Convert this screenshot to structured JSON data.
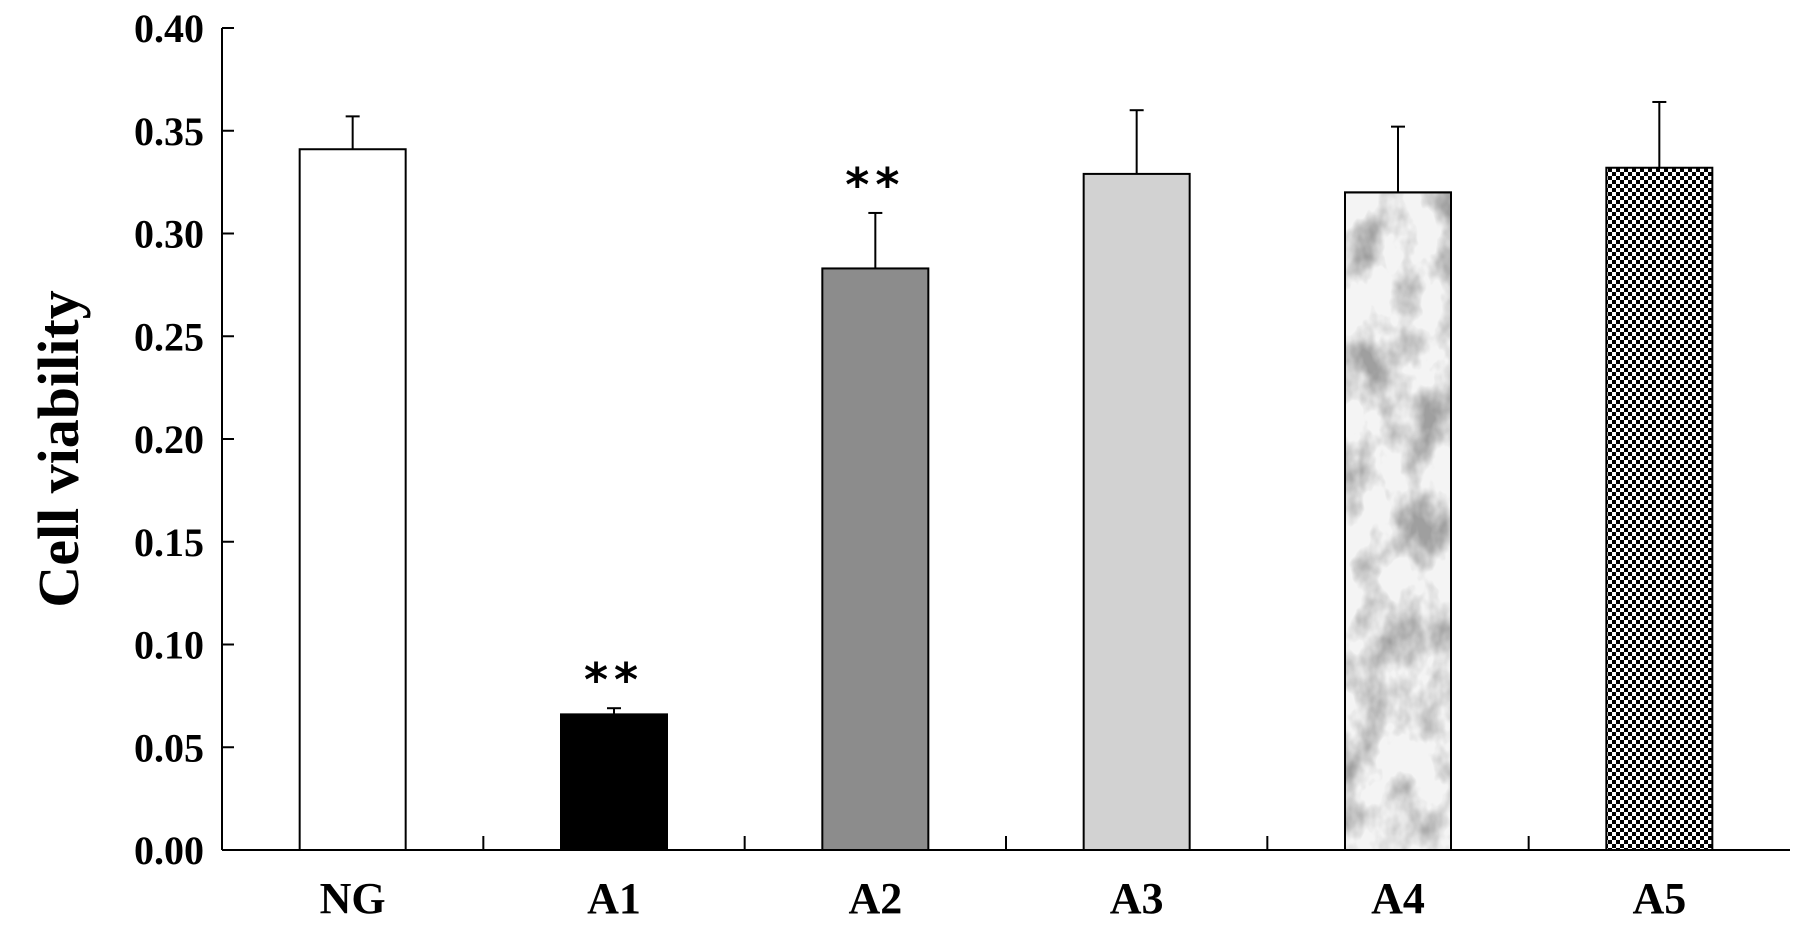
{
  "chart_data": {
    "type": "bar",
    "title": "",
    "xlabel": "",
    "ylabel": "Cell viability",
    "ylim": [
      0,
      0.4
    ],
    "yticks": [
      "0.00",
      "0.05",
      "0.10",
      "0.15",
      "0.20",
      "0.25",
      "0.30",
      "0.35",
      "0.40"
    ],
    "categories": [
      "NG",
      "A1",
      "A2",
      "A3",
      "A4",
      "A5"
    ],
    "values": [
      0.341,
      0.066,
      0.283,
      0.329,
      0.32,
      0.332
    ],
    "errors": [
      0.016,
      0.003,
      0.027,
      0.031,
      0.032,
      0.032
    ],
    "significance": [
      "",
      "**",
      "**",
      "",
      "",
      ""
    ],
    "fills": [
      "white",
      "black",
      "dark-gray",
      "light-gray",
      "marble-texture",
      "checkerboard"
    ],
    "colors": {
      "white": "#ffffff",
      "black": "#000000",
      "dark_gray": "#8c8c8c",
      "light_gray": "#d2d2d2",
      "axis": "#000000"
    },
    "grid": false,
    "legend": "none"
  }
}
